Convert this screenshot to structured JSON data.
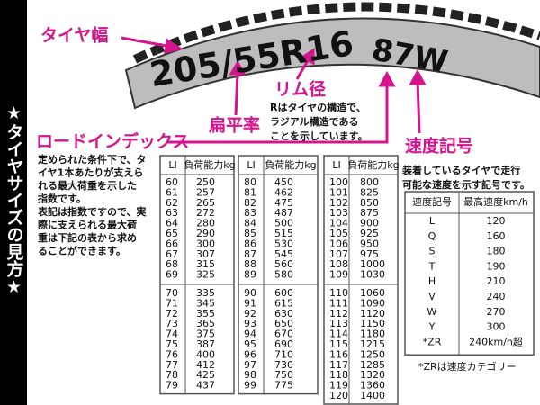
{
  "sidebar": "★タイヤサイズの見方★",
  "tire": {
    "size": "205/55R16",
    "service": "87W"
  },
  "labels": {
    "width": "タイヤ幅",
    "rim": "リム径",
    "aspect": "扁平率",
    "load_index": "ロードインデックス",
    "speed": "速度記号"
  },
  "rim_note": [
    "Rはタイヤの構造で、",
    "ラジアル構造である",
    "ことを示しています。"
  ],
  "load_note": [
    "定められた条件下で、タ",
    "イヤ1本あたりが支えら",
    "れる最大荷重を示した",
    "指数です。",
    "表記は指数ですので、実",
    "際に支えられる最大荷",
    "重は下記の表から求め",
    "ることができます。"
  ],
  "speed_note": [
    "装着しているタイヤで走行",
    "可能な速度を示す記号です。"
  ],
  "load_table": {
    "header": [
      "LI",
      "負荷能力kg"
    ],
    "columns": [
      [
        [
          [
            60,
            250
          ],
          [
            61,
            257
          ],
          [
            62,
            265
          ],
          [
            63,
            272
          ],
          [
            64,
            280
          ],
          [
            65,
            290
          ],
          [
            66,
            300
          ],
          [
            67,
            307
          ],
          [
            68,
            315
          ],
          [
            69,
            325
          ]
        ],
        [
          [
            70,
            335
          ],
          [
            71,
            345
          ],
          [
            72,
            355
          ],
          [
            73,
            365
          ],
          [
            74,
            375
          ],
          [
            75,
            387
          ],
          [
            76,
            400
          ],
          [
            77,
            412
          ],
          [
            78,
            425
          ],
          [
            79,
            437
          ]
        ]
      ],
      [
        [
          [
            80,
            450
          ],
          [
            81,
            462
          ],
          [
            82,
            475
          ],
          [
            83,
            487
          ],
          [
            84,
            500
          ],
          [
            85,
            515
          ],
          [
            86,
            530
          ],
          [
            87,
            545
          ],
          [
            88,
            560
          ],
          [
            89,
            580
          ]
        ],
        [
          [
            90,
            600
          ],
          [
            91,
            615
          ],
          [
            92,
            630
          ],
          [
            93,
            650
          ],
          [
            94,
            670
          ],
          [
            95,
            690
          ],
          [
            96,
            710
          ],
          [
            97,
            730
          ],
          [
            98,
            750
          ],
          [
            99,
            775
          ]
        ]
      ],
      [
        [
          [
            100,
            800
          ],
          [
            101,
            825
          ],
          [
            102,
            850
          ],
          [
            103,
            875
          ],
          [
            104,
            900
          ],
          [
            105,
            925
          ],
          [
            106,
            950
          ],
          [
            107,
            975
          ],
          [
            108,
            1000
          ],
          [
            109,
            1030
          ]
        ],
        [
          [
            110,
            1060
          ],
          [
            111,
            1090
          ],
          [
            112,
            1120
          ],
          [
            113,
            1150
          ],
          [
            114,
            1180
          ],
          [
            115,
            1215
          ],
          [
            116,
            1250
          ],
          [
            117,
            1285
          ],
          [
            118,
            1320
          ],
          [
            119,
            1360
          ],
          [
            120,
            1400
          ]
        ]
      ]
    ]
  },
  "speed_table": {
    "header": [
      "速度記号",
      "最高速度km/h"
    ],
    "rows": [
      [
        "L",
        120
      ],
      [
        "Q",
        160
      ],
      [
        "S",
        180
      ],
      [
        "T",
        190
      ],
      [
        "H",
        210
      ],
      [
        "V",
        240
      ],
      [
        "W",
        270
      ],
      [
        "Y",
        300
      ],
      [
        "*ZR",
        "240km/h超"
      ]
    ]
  },
  "speed_footnote": "*ZRは速度カテゴリー"
}
